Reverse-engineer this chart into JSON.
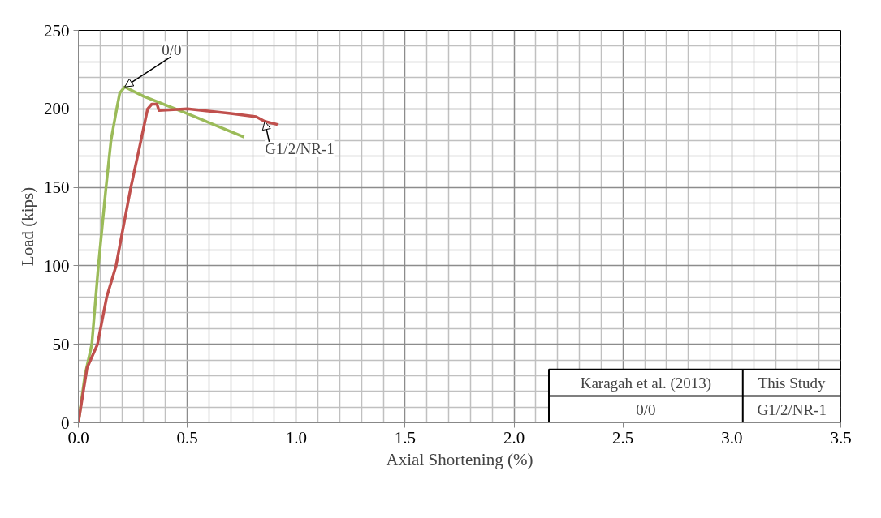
{
  "chart_data": {
    "type": "line",
    "xlabel": "Axial Shortening (%)",
    "ylabel": "Load (kips)",
    "xlim": [
      0,
      3.5
    ],
    "ylim": [
      0,
      250
    ],
    "xticks": [
      {
        "value": 0,
        "label": "0.0"
      },
      0.5,
      {
        "value": 1,
        "label": "1.0"
      },
      1.5,
      {
        "value": 2,
        "label": "2.0"
      },
      2.5,
      {
        "value": 3,
        "label": "3.0"
      },
      3.5
    ],
    "yticks": [
      0,
      50,
      100,
      150,
      200,
      250
    ],
    "grid": true,
    "marker": "none",
    "line_style": "solid",
    "series": [
      {
        "name": "0/0",
        "color": "#9bbb59",
        "x": [
          0,
          0.03,
          0.062,
          0.092,
          0.127,
          0.15,
          0.176,
          0.19,
          0.213,
          0.3,
          0.5,
          0.761
        ],
        "values": [
          0,
          30,
          50,
          100,
          150,
          180,
          200,
          210,
          214,
          208,
          197,
          182
        ]
      },
      {
        "name": "G1/2/NR-1",
        "color": "#c0504d",
        "x": [
          0,
          0.04,
          0.088,
          0.13,
          0.173,
          0.2,
          0.241,
          0.28,
          0.318,
          0.337,
          0.361,
          0.37,
          0.501,
          0.7,
          0.816,
          0.856,
          0.915
        ],
        "values": [
          0,
          35,
          50,
          80,
          100,
          120,
          150,
          175,
          200,
          203,
          203,
          199,
          200,
          197,
          195,
          192,
          190
        ]
      }
    ],
    "annotations": [
      "Karagah et al. (2013)",
      "This Study",
      "0/0",
      "G1/2/NR-1"
    ]
  }
}
